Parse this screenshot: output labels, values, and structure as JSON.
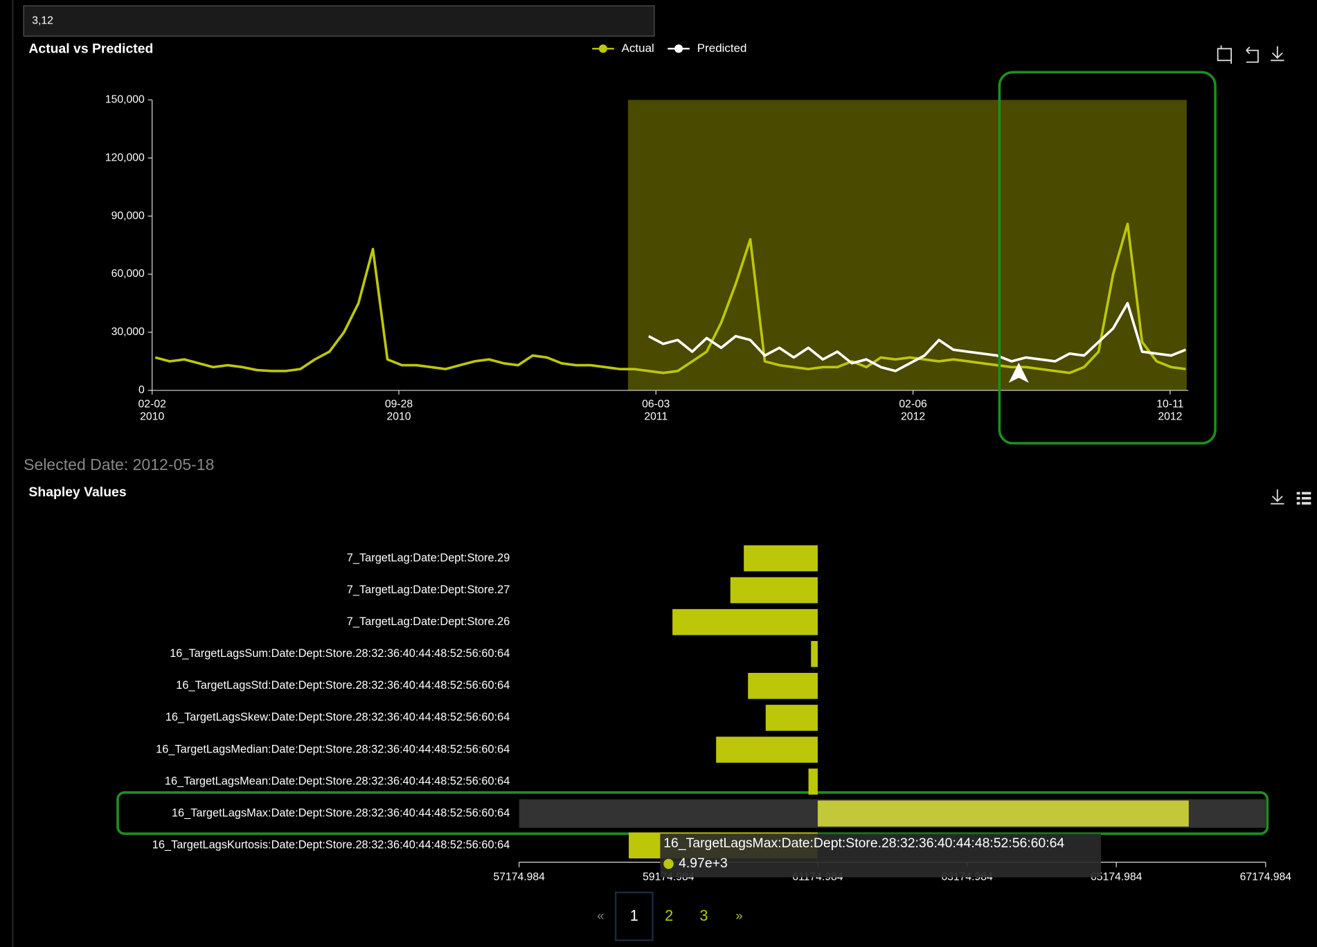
{
  "filter_input": "3,12",
  "selected_date": "Selected Date: 2012-05-18",
  "pagination": {
    "prev": "«",
    "pages": [
      "1",
      "2",
      "3"
    ],
    "next": "»"
  },
  "chart_data": [
    {
      "type": "line",
      "title": "Actual vs Predicted",
      "x": [
        "2010-02-05",
        "2010-02-19",
        "2010-03-05",
        "2010-03-19",
        "2010-04-02",
        "2010-04-16",
        "2010-04-30",
        "2010-05-14",
        "2010-05-28",
        "2010-06-11",
        "2010-06-25",
        "2010-07-09",
        "2010-07-23",
        "2010-08-06",
        "2010-08-20",
        "2010-09-03",
        "2010-09-17",
        "2010-10-01",
        "2010-10-15",
        "2010-10-29",
        "2010-11-12",
        "2010-11-26",
        "2010-12-10",
        "2010-12-24",
        "2011-01-07",
        "2011-01-21",
        "2011-02-04",
        "2011-02-18",
        "2011-03-04",
        "2011-03-18",
        "2011-04-01",
        "2011-04-15",
        "2011-04-29",
        "2011-05-13",
        "2011-05-27",
        "2011-06-10",
        "2011-06-24",
        "2011-07-08",
        "2011-07-22",
        "2011-08-05",
        "2011-08-19",
        "2011-09-02",
        "2011-09-16",
        "2011-09-30",
        "2011-10-14",
        "2011-10-28",
        "2011-11-11",
        "2011-11-25",
        "2011-12-09",
        "2011-12-23",
        "2012-01-06",
        "2012-01-20",
        "2012-02-03",
        "2012-02-17",
        "2012-03-02",
        "2012-03-16",
        "2012-03-30",
        "2012-04-13",
        "2012-04-27",
        "2012-05-11",
        "2012-05-25",
        "2012-06-08",
        "2012-06-22",
        "2012-07-06",
        "2012-07-20",
        "2012-08-03",
        "2012-08-17",
        "2012-08-31",
        "2012-09-14",
        "2012-09-28",
        "2012-10-12",
        "2012-10-26"
      ],
      "series": [
        {
          "name": "Actual",
          "color": "#bcc70a",
          "values": [
            17000,
            15000,
            16000,
            14000,
            12000,
            13000,
            12000,
            10500,
            10000,
            10000,
            11000,
            16000,
            20000,
            30000,
            45000,
            73000,
            16000,
            13000,
            13000,
            12000,
            11000,
            13000,
            15000,
            16000,
            14000,
            13000,
            18000,
            17000,
            14000,
            13000,
            13000,
            12000,
            11000,
            11000,
            10000,
            9000,
            10000,
            15000,
            20000,
            35000,
            55000,
            78000,
            15000,
            13000,
            12000,
            11000,
            12000,
            12000,
            15000,
            12000,
            17000,
            16000,
            17000,
            16000,
            15000,
            16000,
            15000,
            14000,
            13000,
            12000,
            12000,
            11000,
            10000,
            9000,
            12000,
            20000,
            60000,
            86000,
            25000,
            15000,
            12000,
            11000
          ]
        },
        {
          "name": "Predicted",
          "color": "#ffffff",
          "values": [
            null,
            null,
            null,
            null,
            null,
            null,
            null,
            null,
            null,
            null,
            null,
            null,
            null,
            null,
            null,
            null,
            null,
            null,
            null,
            null,
            null,
            null,
            null,
            null,
            null,
            null,
            null,
            null,
            null,
            null,
            null,
            null,
            null,
            null,
            28000,
            24000,
            26000,
            20000,
            27000,
            22000,
            28000,
            26000,
            18000,
            22000,
            17000,
            22000,
            16000,
            20000,
            14000,
            16000,
            12000,
            10000,
            14000,
            18000,
            26000,
            21000,
            20000,
            19000,
            18000,
            15000,
            17000,
            16000,
            15000,
            19000,
            18000,
            25000,
            32000,
            45000,
            20000,
            19000,
            18000,
            21000
          ]
        }
      ],
      "xlim": [
        "2010-02-02",
        "2012-10-27"
      ],
      "xticks": [
        {
          "value": "2010-02-02",
          "label": "02-02 2010"
        },
        {
          "value": "2010-09-28",
          "label": "09-28 2010"
        },
        {
          "value": "2011-06-03",
          "label": "06-03 2011"
        },
        {
          "value": "2012-02-06",
          "label": "02-06 2012"
        },
        {
          "value": "2012-10-11",
          "label": "10-11 2012"
        }
      ],
      "ylim": [
        0,
        150000
      ],
      "yticks": [
        0,
        {
          "value": 30000,
          "label": "30,000"
        },
        {
          "value": 60000,
          "label": "60,000"
        },
        {
          "value": 90000,
          "label": "90,000"
        },
        {
          "value": 120000,
          "label": "120,000"
        },
        {
          "value": 150000,
          "label": "150,000"
        }
      ],
      "brush": [
        "2011-05-07",
        "2012-10-27"
      ],
      "brush_color": "#4a4a00",
      "legend": "top"
    },
    {
      "type": "hbar",
      "title": "Shapley Values",
      "categories": [
        "7_TargetLag:Date:Dept:Store.29",
        "7_TargetLag:Date:Dept:Store.27",
        "7_TargetLag:Date:Dept:Store.26",
        "16_TargetLagsSum:Date:Dept:Store.28:32:36:40:44:48:52:56:60:64",
        "16_TargetLagsStd:Date:Dept:Store.28:32:36:40:44:48:52:56:60:64",
        "16_TargetLagsSkew:Date:Dept:Store.28:32:36:40:44:48:52:56:60:64",
        "16_TargetLagsMedian:Date:Dept:Store.28:32:36:40:44:48:52:56:60:64",
        "16_TargetLagsMean:Date:Dept:Store.28:32:36:40:44:48:52:56:60:64",
        "16_TargetLagsMax:Date:Dept:Store.28:32:36:40:44:48:52:56:60:64",
        "16_TargetLagsKurtosis:Date:Dept:Store.28:32:36:40:44:48:52:56:60:64"
      ],
      "values": [
        -990,
        -1170,
        -1946,
        -90,
        -934,
        -697,
        -1361,
        -124,
        4970,
        -2531
      ],
      "color": "#bcc70a",
      "baseline": 61174.984,
      "xlim": [
        57174.984,
        67174.984
      ],
      "xticks": [
        57174.984,
        59174.984,
        61174.984,
        63174.984,
        65174.984,
        67174.984
      ],
      "tooltip": {
        "label": "16_TargetLagsMax:Date:Dept:Store.28:32:36:40:44:48:52:56:60:64",
        "value": 4970,
        "value_label": "4.97e+3"
      }
    }
  ]
}
